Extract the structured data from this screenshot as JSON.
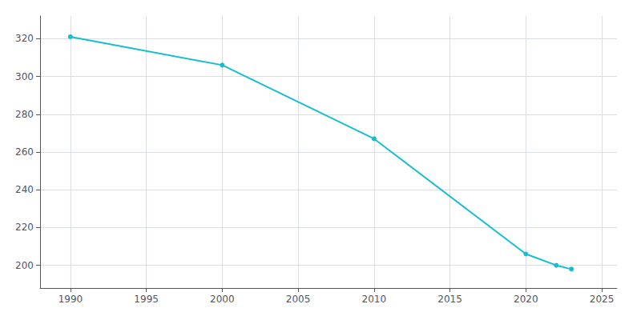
{
  "chart_data": {
    "type": "line",
    "x": [
      1990,
      2000,
      2010,
      2020,
      2022,
      2023
    ],
    "values": [
      321,
      306,
      267,
      206,
      200,
      198
    ],
    "color": "#17becf",
    "marker": "circle",
    "xlim": [
      1988,
      2026
    ],
    "ylim": [
      188,
      332
    ],
    "xticks": [
      1990,
      1995,
      2000,
      2005,
      2010,
      2015,
      2020,
      2025
    ],
    "yticks": [
      200,
      220,
      240,
      260,
      280,
      300,
      320
    ],
    "grid": true
  }
}
